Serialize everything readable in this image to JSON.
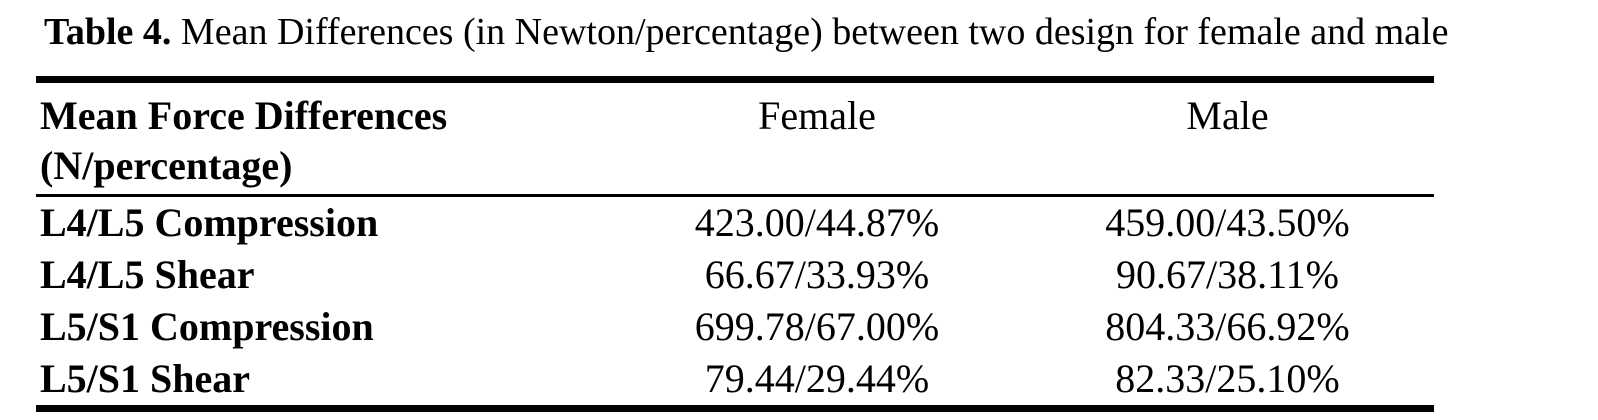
{
  "caption": {
    "label": "Table 4.",
    "text": " Mean Differences (in Newton/percentage) between two design for female and male"
  },
  "table": {
    "header": {
      "first_line1": "Mean Force Differences",
      "first_line2": "(N/percentage)",
      "female": "Female",
      "male": "Male"
    },
    "rows": [
      {
        "label": "L4/L5 Compression",
        "female": "423.00/44.87%",
        "male": "459.00/43.50%"
      },
      {
        "label": "L4/L5 Shear",
        "female": "66.67/33.93%",
        "male": "90.67/38.11%"
      },
      {
        "label": "L5/S1 Compression",
        "female": "699.78/67.00%",
        "male": "804.33/66.92%"
      },
      {
        "label": "L5/S1 Shear",
        "female": "79.44/29.44%",
        "male": "82.33/25.10%"
      }
    ]
  }
}
